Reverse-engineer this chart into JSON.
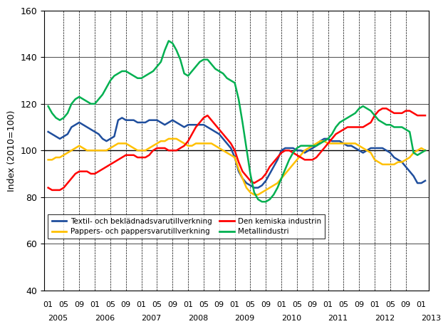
{
  "title": "",
  "ylabel": "Index (2010=100)",
  "ylim": [
    40,
    160
  ],
  "yticks": [
    40,
    60,
    80,
    100,
    120,
    140,
    160
  ],
  "background_color": "#ffffff",
  "series": {
    "textil": {
      "label": "Textil- och beklädnadsvarutillverkning",
      "color": "#1f4e9d",
      "values": [
        108,
        107,
        106,
        105,
        106,
        107,
        110,
        111,
        112,
        111,
        110,
        109,
        108,
        107,
        105,
        104,
        105,
        106,
        113,
        114,
        113,
        113,
        113,
        112,
        112,
        112,
        113,
        113,
        113,
        112,
        111,
        112,
        113,
        112,
        111,
        110,
        111,
        111,
        111,
        111,
        111,
        110,
        109,
        108,
        107,
        105,
        103,
        101,
        97,
        91,
        88,
        86,
        85,
        84,
        84,
        85,
        87,
        90,
        93,
        96,
        100,
        101,
        101,
        101,
        100,
        100,
        99,
        100,
        101,
        102,
        104,
        105,
        105,
        104,
        104,
        104,
        103,
        102,
        102,
        101,
        100,
        99,
        100,
        101,
        101,
        101,
        101,
        100,
        99,
        97,
        96,
        95,
        93,
        91,
        89,
        86,
        86,
        87
      ]
    },
    "pappers": {
      "label": "Pappers- och pappersvarutillverkning",
      "color": "#ffc000",
      "values": [
        96,
        96,
        97,
        97,
        98,
        99,
        100,
        101,
        102,
        101,
        100,
        100,
        100,
        100,
        100,
        100,
        101,
        102,
        103,
        103,
        103,
        102,
        101,
        100,
        100,
        100,
        101,
        102,
        103,
        104,
        104,
        105,
        105,
        105,
        104,
        103,
        102,
        102,
        103,
        103,
        103,
        103,
        103,
        102,
        101,
        100,
        99,
        98,
        97,
        92,
        88,
        84,
        82,
        81,
        81,
        82,
        83,
        84,
        85,
        86,
        88,
        90,
        92,
        94,
        96,
        98,
        100,
        101,
        102,
        103,
        104,
        104,
        103,
        103,
        103,
        103,
        103,
        103,
        103,
        103,
        102,
        101,
        100,
        99,
        96,
        95,
        94,
        94,
        94,
        94,
        95,
        95,
        96,
        97,
        99,
        100,
        101,
        100
      ]
    },
    "kemiska": {
      "label": "Den kemiska industrin",
      "color": "#ff0000",
      "values": [
        84,
        83,
        83,
        83,
        84,
        86,
        88,
        90,
        91,
        91,
        91,
        90,
        90,
        91,
        92,
        93,
        94,
        95,
        96,
        97,
        98,
        98,
        98,
        97,
        97,
        97,
        98,
        100,
        101,
        101,
        101,
        100,
        100,
        100,
        101,
        102,
        104,
        107,
        110,
        112,
        114,
        115,
        113,
        111,
        109,
        107,
        105,
        103,
        100,
        95,
        91,
        89,
        87,
        86,
        87,
        88,
        90,
        93,
        95,
        97,
        99,
        100,
        100,
        99,
        98,
        97,
        96,
        96,
        96,
        97,
        99,
        101,
        103,
        105,
        107,
        108,
        109,
        110,
        110,
        110,
        110,
        110,
        111,
        112,
        115,
        117,
        118,
        118,
        117,
        116,
        116,
        116,
        117,
        117,
        116,
        115,
        115,
        115
      ]
    },
    "metall": {
      "label": "Metallindustri",
      "color": "#00b050",
      "values": [
        119,
        116,
        114,
        113,
        114,
        116,
        120,
        122,
        123,
        122,
        121,
        120,
        120,
        122,
        124,
        127,
        130,
        132,
        133,
        134,
        134,
        133,
        132,
        131,
        131,
        132,
        133,
        134,
        136,
        138,
        143,
        147,
        146,
        143,
        139,
        133,
        132,
        134,
        136,
        138,
        139,
        139,
        137,
        135,
        134,
        133,
        131,
        130,
        129,
        122,
        112,
        101,
        90,
        82,
        79,
        78,
        78,
        79,
        81,
        84,
        88,
        92,
        96,
        99,
        101,
        102,
        102,
        102,
        102,
        102,
        103,
        104,
        105,
        107,
        110,
        112,
        113,
        114,
        115,
        116,
        118,
        119,
        118,
        117,
        115,
        113,
        112,
        111,
        111,
        110,
        110,
        110,
        109,
        108,
        99,
        98,
        99,
        100
      ]
    }
  },
  "month_ticks": [
    0,
    4,
    8,
    12,
    16,
    20,
    24,
    28,
    32,
    36,
    40,
    44,
    48,
    52,
    56,
    60,
    64,
    68,
    72,
    76,
    80,
    84,
    88,
    92,
    96
  ],
  "month_labels": [
    "01",
    "05",
    "09",
    "01",
    "05",
    "09",
    "01",
    "05",
    "09",
    "01",
    "05",
    "09",
    "01",
    "05",
    "09",
    "01",
    "05",
    "09",
    "01",
    "05",
    "09",
    "01",
    "05",
    "09",
    "01"
  ],
  "year_tick_positions": [
    0,
    12,
    24,
    36,
    48,
    60,
    72,
    84,
    96
  ],
  "year_labels": [
    "2005",
    "2006",
    "2007",
    "2008",
    "2009",
    "2010",
    "2011",
    "2012",
    "2013"
  ],
  "vline_positions": [
    4,
    8,
    12,
    16,
    20,
    24,
    28,
    32,
    36,
    40,
    44,
    48,
    52,
    56,
    60,
    64,
    68,
    72,
    76,
    80,
    84,
    88,
    92
  ]
}
